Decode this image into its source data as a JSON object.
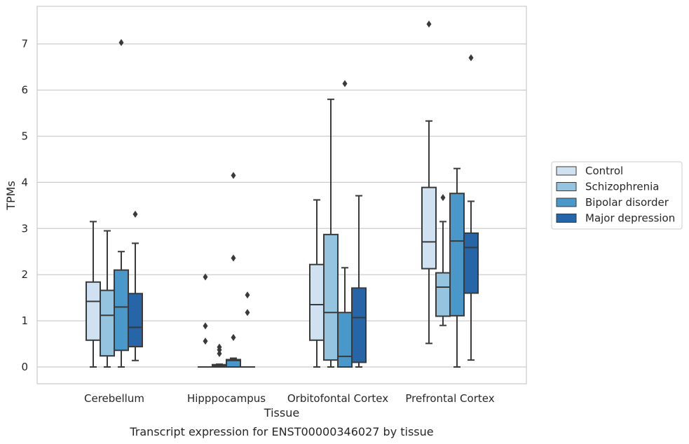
{
  "chart_data": {
    "type": "box",
    "title": "Transcript expression for ENST00000346027 by tissue",
    "xlabel": "Tissue",
    "ylabel": "TPMs",
    "ylim": [
      -0.35,
      7.8
    ],
    "yticks": [
      0,
      1,
      2,
      3,
      4,
      5,
      6,
      7
    ],
    "grid": true,
    "legend_position": "right-outside",
    "categories": [
      "Cerebellum",
      "Hipppocampus",
      "Orbitofontal Cortex",
      "Prefrontal Cortex"
    ],
    "series": [
      {
        "name": "Control",
        "color": "#d0e1f2",
        "boxes": [
          {
            "whislo": 0.0,
            "q1": 0.58,
            "med": 1.42,
            "q3": 1.84,
            "whishi": 3.15,
            "fliers": []
          },
          {
            "whislo": 0.0,
            "q1": 0.0,
            "med": 0.0,
            "q3": 0.0,
            "whishi": 0.0,
            "fliers": [
              1.95,
              0.89,
              0.56
            ]
          },
          {
            "whislo": 0.0,
            "q1": 0.58,
            "med": 1.35,
            "q3": 2.22,
            "whishi": 3.62,
            "fliers": []
          },
          {
            "whislo": 0.51,
            "q1": 2.13,
            "med": 2.71,
            "q3": 3.89,
            "whishi": 5.33,
            "fliers": [
              7.43
            ]
          }
        ]
      },
      {
        "name": "Schizophrenia",
        "color": "#94c4df",
        "boxes": [
          {
            "whislo": 0.0,
            "q1": 0.24,
            "med": 1.12,
            "q3": 1.66,
            "whishi": 2.95,
            "fliers": []
          },
          {
            "whislo": 0.0,
            "q1": 0.0,
            "med": 0.02,
            "q3": 0.05,
            "whishi": 0.06,
            "fliers": [
              0.43,
              0.37,
              0.29
            ]
          },
          {
            "whislo": 0.0,
            "q1": 0.15,
            "med": 1.18,
            "q3": 2.87,
            "whishi": 5.8,
            "fliers": []
          },
          {
            "whislo": 0.9,
            "q1": 1.1,
            "med": 1.73,
            "q3": 2.04,
            "whishi": 3.15,
            "fliers": [
              3.67
            ]
          }
        ]
      },
      {
        "name": "Bipolar disorder",
        "color": "#4a98c9",
        "boxes": [
          {
            "whislo": 0.0,
            "q1": 0.36,
            "med": 1.3,
            "q3": 2.1,
            "whishi": 2.5,
            "fliers": [
              7.03
            ]
          },
          {
            "whislo": 0.0,
            "q1": 0.0,
            "med": 0.14,
            "q3": 0.16,
            "whishi": 0.19,
            "fliers": [
              4.15,
              2.36,
              0.64
            ]
          },
          {
            "whislo": 0.0,
            "q1": 0.0,
            "med": 0.23,
            "q3": 1.18,
            "whishi": 2.15,
            "fliers": [
              6.14
            ]
          },
          {
            "whislo": 0.0,
            "q1": 1.11,
            "med": 2.73,
            "q3": 3.76,
            "whishi": 4.3,
            "fliers": []
          }
        ]
      },
      {
        "name": "Major depression",
        "color": "#2565a8",
        "boxes": [
          {
            "whislo": 0.14,
            "q1": 0.44,
            "med": 0.86,
            "q3": 1.59,
            "whishi": 2.68,
            "fliers": [
              3.31
            ]
          },
          {
            "whislo": 0.0,
            "q1": 0.0,
            "med": 0.0,
            "q3": 0.0,
            "whishi": 0.0,
            "fliers": [
              1.56,
              1.18
            ]
          },
          {
            "whislo": 0.0,
            "q1": 0.1,
            "med": 1.07,
            "q3": 1.71,
            "whishi": 3.71,
            "fliers": []
          },
          {
            "whislo": 0.15,
            "q1": 1.6,
            "med": 2.59,
            "q3": 2.9,
            "whishi": 3.59,
            "fliers": [
              6.7
            ]
          }
        ]
      }
    ]
  }
}
